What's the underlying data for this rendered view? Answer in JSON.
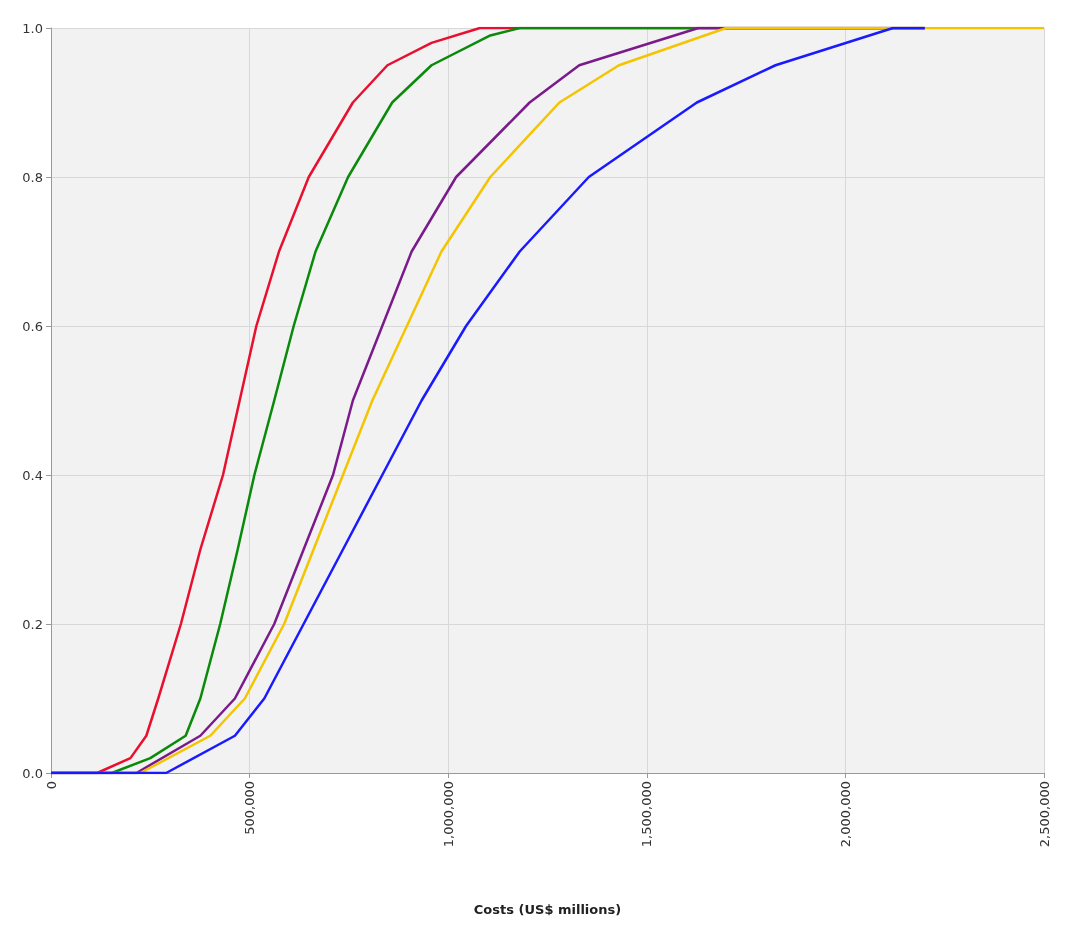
{
  "chart_data": {
    "type": "line",
    "xlabel": "Costs (US$ millions)",
    "xlim": [
      0,
      2500000
    ],
    "ylim": [
      0,
      1
    ],
    "xticks": [
      0,
      {
        "value": 500000,
        "label": "500,000"
      },
      {
        "value": 1000000,
        "label": "1,000,000"
      },
      {
        "value": 1500000,
        "label": "1,500,000"
      },
      {
        "value": 2000000,
        "label": "2,000,000"
      },
      {
        "value": 2500000,
        "label": "2,500,000"
      }
    ],
    "yticks": [
      {
        "value": 0,
        "label": "0.0"
      },
      {
        "value": 0.2,
        "label": "0.2"
      },
      {
        "value": 0.4,
        "label": "0.4"
      },
      {
        "value": 0.6,
        "label": "0.6"
      },
      {
        "value": 0.8,
        "label": "0.8"
      },
      {
        "value": 1,
        "label": "1.0"
      }
    ],
    "grid": true,
    "marker": "none",
    "line_style": "solid",
    "series": [
      {
        "color": "#e8102e",
        "x": [
          0,
          116000,
          200000,
          240000,
          270000,
          327000,
          376000,
          433000,
          475000,
          517000,
          574000,
          649000,
          760000,
          847000,
          958000,
          1080000,
          2200000
        ],
        "values": [
          0,
          0,
          0.02,
          0.05,
          0.1,
          0.2,
          0.3,
          0.4,
          0.5,
          0.6,
          0.7,
          0.8,
          0.9,
          0.95,
          0.98,
          1,
          1
        ]
      },
      {
        "color": "#0a8a0a",
        "x": [
          0,
          153000,
          250000,
          339000,
          376000,
          426000,
          470000,
          512000,
          562000,
          611000,
          666000,
          748000,
          859000,
          958000,
          1106000,
          1180000,
          2200000
        ],
        "values": [
          0,
          0,
          0.02,
          0.05,
          0.1,
          0.2,
          0.3,
          0.4,
          0.5,
          0.6,
          0.7,
          0.8,
          0.9,
          0.95,
          0.99,
          1,
          1
        ]
      },
      {
        "color": "#7b1b8b",
        "x": [
          0,
          215000,
          376000,
          463000,
          562000,
          636000,
          710000,
          760000,
          834000,
          908000,
          1020000,
          1205000,
          1330000,
          1630000,
          2200000
        ],
        "values": [
          0,
          0,
          0.05,
          0.1,
          0.2,
          0.3,
          0.4,
          0.5,
          0.6,
          0.7,
          0.8,
          0.9,
          0.95,
          1,
          1
        ]
      },
      {
        "color": "#f5c400",
        "x": [
          0,
          225000,
          401000,
          488000,
          587000,
          661000,
          735000,
          809000,
          896000,
          983000,
          1106000,
          1280000,
          1430000,
          1700000,
          2500000
        ],
        "values": [
          0,
          0,
          0.05,
          0.1,
          0.2,
          0.3,
          0.4,
          0.5,
          0.6,
          0.7,
          0.8,
          0.9,
          0.95,
          1,
          1
        ]
      },
      {
        "color": "#1a1aff",
        "x": [
          0,
          290000,
          463000,
          537000,
          636000,
          735000,
          834000,
          933000,
          1045000,
          1180000,
          1354000,
          1626000,
          1824000,
          2120000,
          2200000
        ],
        "values": [
          0,
          0,
          0.05,
          0.1,
          0.2,
          0.3,
          0.4,
          0.5,
          0.6,
          0.7,
          0.8,
          0.9,
          0.95,
          1,
          1
        ]
      }
    ]
  }
}
